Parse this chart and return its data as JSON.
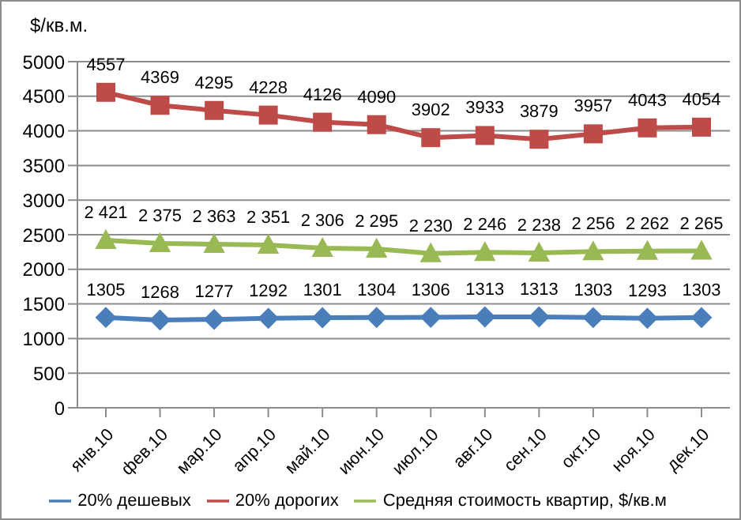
{
  "chart_data": {
    "type": "line",
    "ylabel": "$/кв.м.",
    "categories": [
      "янв.10",
      "фев.10",
      "мар.10",
      "апр.10",
      "май.10",
      "июн.10",
      "июл.10",
      "авг.10",
      "сен.10",
      "окт.10",
      "ноя.10",
      "дек.10"
    ],
    "series": [
      {
        "name": "20% дешевых",
        "color": "#4a7ebb",
        "marker": "diamond",
        "values": [
          1305,
          1268,
          1277,
          1292,
          1301,
          1304,
          1306,
          1313,
          1313,
          1303,
          1293,
          1303
        ],
        "value_labels": [
          "1305",
          "1268",
          "1277",
          "1292",
          "1301",
          "1304",
          "1306",
          "1313",
          "1313",
          "1303",
          "1293",
          "1303"
        ]
      },
      {
        "name": "20% дорогих",
        "color": "#be4b48",
        "marker": "square",
        "values": [
          4557,
          4369,
          4295,
          4228,
          4126,
          4090,
          3902,
          3933,
          3879,
          3957,
          4043,
          4054
        ],
        "value_labels": [
          "4557",
          "4369",
          "4295",
          "4228",
          "4126",
          "4090",
          "3902",
          "3933",
          "3879",
          "3957",
          "4043",
          "4054"
        ]
      },
      {
        "name": "Средняя стоимость квартир, $/кв.м",
        "color": "#98b954",
        "marker": "triangle",
        "values": [
          2421,
          2375,
          2363,
          2351,
          2306,
          2295,
          2230,
          2246,
          2238,
          2256,
          2262,
          2265
        ],
        "value_labels": [
          "2 421",
          "2 375",
          "2 363",
          "2 351",
          "2 306",
          "2 295",
          "2 230",
          "2 246",
          "2 238",
          "2 256",
          "2 262",
          "2 265"
        ]
      }
    ],
    "ylim": [
      0,
      5000
    ],
    "yticks": [
      0,
      500,
      1000,
      1500,
      2000,
      2500,
      3000,
      3500,
      4000,
      4500,
      5000
    ],
    "grid": "y",
    "legend": "bottom"
  }
}
